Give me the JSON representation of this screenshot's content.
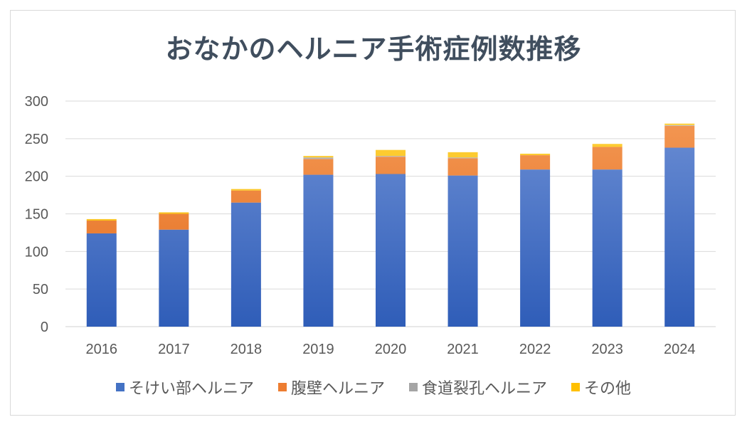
{
  "chart_data": {
    "type": "bar",
    "stacked": true,
    "title": "おなかのヘルニア手術症例数推移",
    "xlabel": "",
    "ylabel": "",
    "ylim": [
      0,
      300
    ],
    "yticks": [
      0,
      50,
      100,
      150,
      200,
      250,
      300
    ],
    "grid": true,
    "legend_position": "bottom",
    "categories": [
      "2016",
      "2017",
      "2018",
      "2019",
      "2020",
      "2021",
      "2022",
      "2023",
      "2024"
    ],
    "series": [
      {
        "name": "そけい部ヘルニア",
        "color": "#4472c4",
        "values": [
          124,
          129,
          165,
          202,
          203,
          201,
          209,
          209,
          238
        ]
      },
      {
        "name": "腹壁ヘルニア",
        "color": "#ed7d31",
        "values": [
          17,
          21,
          16,
          21,
          23,
          23,
          19,
          30,
          29
        ]
      },
      {
        "name": "食道裂孔ヘルニア",
        "color": "#a5a5a5",
        "values": [
          0,
          0,
          0,
          2,
          1,
          1,
          0,
          0,
          1
        ]
      },
      {
        "name": "その他",
        "color": "#ffc000",
        "values": [
          2,
          2,
          2,
          2,
          8,
          7,
          2,
          4,
          2
        ]
      }
    ]
  }
}
